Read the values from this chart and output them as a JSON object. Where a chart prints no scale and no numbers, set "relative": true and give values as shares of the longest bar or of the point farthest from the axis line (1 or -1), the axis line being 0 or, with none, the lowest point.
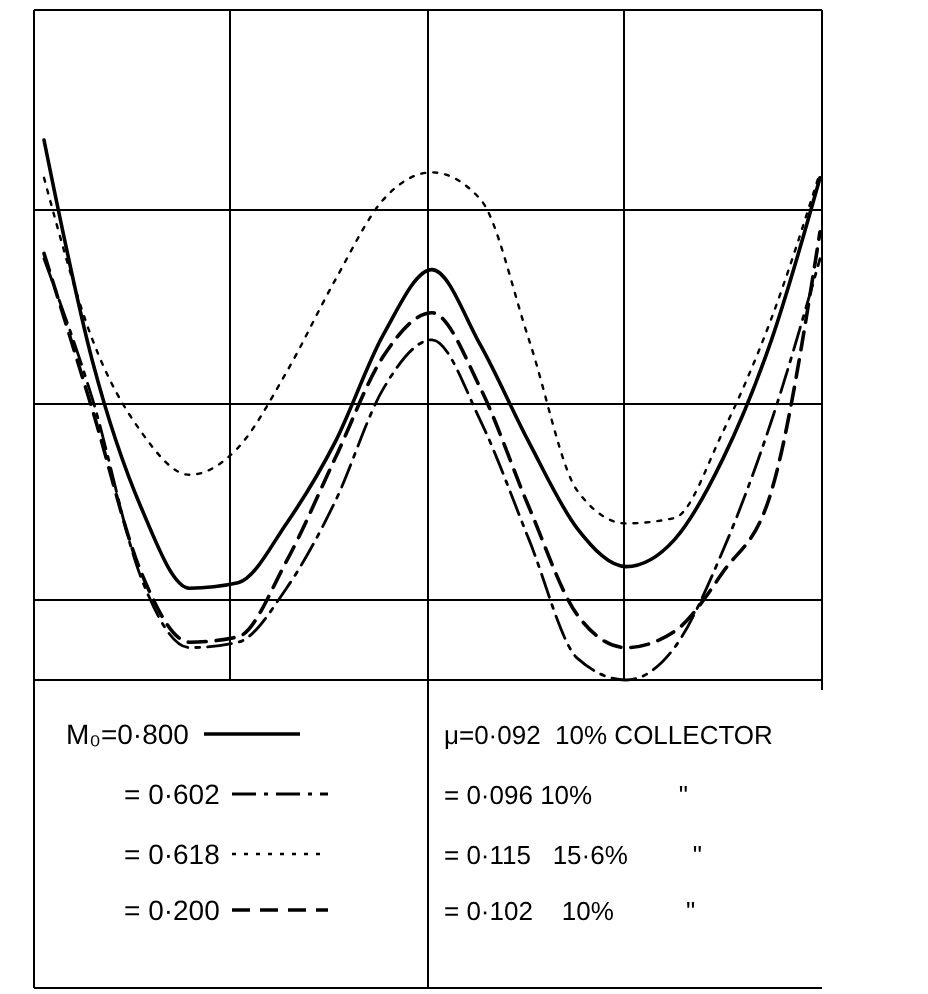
{
  "chart_data": {
    "type": "line",
    "relative": true,
    "grid": true,
    "legend": "bottom",
    "categories": [
      null,
      null,
      null,
      null,
      null,
      null,
      null,
      null,
      null,
      null,
      null,
      null,
      null,
      null,
      null,
      null,
      null
    ],
    "series": [
      {
        "name": "M₀=0·800",
        "color": "#000000",
        "line_style": "solid",
        "values": [
          1,
          0.59,
          0.32,
          0.17,
          0.18,
          0.29,
          0.44,
          0.64,
          0.76,
          0.62,
          0.44,
          0.28,
          0.21,
          0.26,
          0.41,
          0.63,
          0.93
        ]
      },
      {
        "name": "= 0·602",
        "color": "#000000",
        "line_style": "dashdot",
        "values": [
          0.78,
          0.52,
          0.19,
          0.06,
          0.07,
          0.17,
          0.33,
          0.54,
          0.63,
          0.48,
          0.26,
          0.04,
          0,
          0.06,
          0.24,
          0.48,
          0.78
        ]
      },
      {
        "name": "= 0·618",
        "color": "#000000",
        "line_style": "dotted",
        "values": [
          0.93,
          0.63,
          0.46,
          0.38,
          0.43,
          0.57,
          0.74,
          0.89,
          0.94,
          0.89,
          0.63,
          0.35,
          0.29,
          0.3,
          0.46,
          0.67,
          0.94
        ]
      },
      {
        "name": "= 0·200",
        "color": "#000000",
        "line_style": "dashed",
        "values": [
          0.79,
          0.5,
          0.2,
          0.07,
          0.08,
          0.22,
          0.41,
          0.6,
          0.68,
          0.54,
          0.32,
          0.12,
          0.06,
          0.09,
          0.2,
          0.35,
          0.83
        ]
      }
    ],
    "annotations": [
      "μ=0·092  10% COLLECTOR",
      "= 0·096 10%            \"",
      "= 0·115   15·6%         \"",
      "= 0·102    10%          \""
    ]
  }
}
